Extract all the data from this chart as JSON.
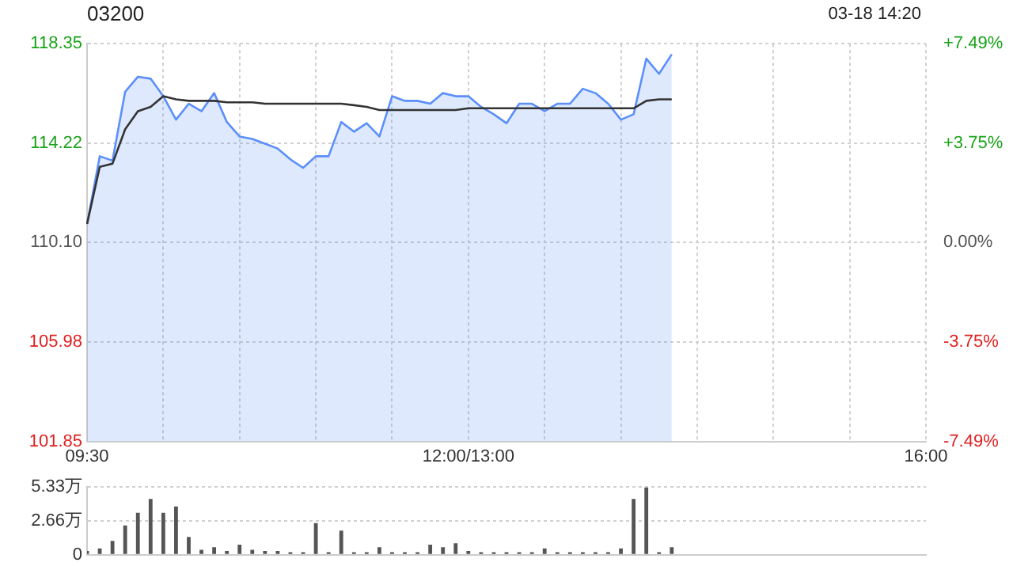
{
  "chart_data": [
    {
      "type": "line",
      "title": "03200",
      "annotations": [
        "03-18 14:20"
      ],
      "categories": [
        "09:30",
        null,
        null,
        null,
        null,
        null,
        null,
        null,
        null,
        null,
        null,
        null,
        null,
        null,
        null,
        null,
        null,
        null,
        null,
        null,
        null,
        null,
        null,
        null,
        null,
        null,
        null,
        null,
        null,
        null,
        "12:00/13:00",
        null,
        null,
        null,
        null,
        null,
        null,
        null,
        null,
        null,
        null,
        null,
        null,
        null,
        null,
        null,
        null,
        null,
        null,
        null,
        null,
        null,
        null,
        null,
        null,
        null,
        null,
        null,
        null,
        null,
        null,
        null,
        null,
        null,
        null,
        null,
        "16:00"
      ],
      "series": [
        {
          "type": "area",
          "color": "#5b8ff9",
          "values": [
            110.87,
            113.68,
            113.5,
            116.36,
            116.98,
            116.9,
            116.17,
            115.2,
            115.86,
            115.55,
            116.3,
            115.1,
            114.5,
            114.4,
            114.2,
            114.0,
            113.55,
            113.2,
            113.68,
            113.68,
            115.1,
            114.7,
            115.05,
            114.5,
            116.17,
            115.98,
            115.98,
            115.86,
            116.3,
            116.17,
            116.17,
            115.73,
            115.42,
            115.05,
            115.86,
            115.86,
            115.55,
            115.86,
            115.86,
            116.48,
            116.3,
            115.86,
            115.2,
            115.42,
            117.73,
            117.1,
            117.91,
            null,
            null,
            null,
            null,
            null,
            null,
            null,
            null,
            null,
            null,
            null,
            null,
            null,
            null,
            null,
            null,
            null,
            null,
            null,
            null
          ]
        },
        {
          "type": "line",
          "color": "#333333",
          "values": [
            110.87,
            113.24,
            113.37,
            114.8,
            115.55,
            115.73,
            116.17,
            116.04,
            115.98,
            115.98,
            115.98,
            115.92,
            115.92,
            115.92,
            115.86,
            115.86,
            115.86,
            115.86,
            115.86,
            115.86,
            115.86,
            115.8,
            115.73,
            115.6,
            115.6,
            115.6,
            115.6,
            115.6,
            115.6,
            115.6,
            115.67,
            115.67,
            115.67,
            115.67,
            115.67,
            115.67,
            115.67,
            115.67,
            115.67,
            115.67,
            115.67,
            115.67,
            115.67,
            115.67,
            115.98,
            116.04,
            116.04,
            null,
            null,
            null,
            null,
            null,
            null,
            null,
            null,
            null,
            null,
            null,
            null,
            null,
            null,
            null,
            null,
            null,
            null,
            null,
            null
          ]
        }
      ],
      "ylim": [
        101.85,
        118.35
      ],
      "yticks": [
        {
          "value": 101.85,
          "label": "101.85"
        },
        {
          "value": 105.98,
          "label": "105.98"
        },
        {
          "value": 110.1,
          "label": "110.10"
        },
        {
          "value": 114.22,
          "label": "114.22"
        },
        {
          "value": 118.35,
          "label": "118.35"
        }
      ],
      "y2lim": [
        -7.49,
        7.49
      ],
      "y2ticks": [
        {
          "value": -7.49,
          "label": "-7.49%"
        },
        {
          "value": -3.75,
          "label": "-3.75%"
        },
        {
          "value": 0,
          "label": "0.00%"
        },
        {
          "value": 3.75,
          "label": "+3.75%"
        },
        {
          "value": 7.49,
          "label": "+7.49%"
        }
      ],
      "grid": true,
      "marker": "none"
    },
    {
      "type": "bar",
      "color": "#555555",
      "tick_labels": "y",
      "categories": [
        null,
        null,
        null,
        null,
        null,
        null,
        null,
        null,
        null,
        null,
        null,
        null,
        null,
        null,
        null,
        null,
        null,
        null,
        null,
        null,
        null,
        null,
        null,
        null,
        null,
        null,
        null,
        null,
        null,
        null,
        null,
        null,
        null,
        null,
        null,
        null,
        null,
        null,
        null,
        null,
        null,
        null,
        null,
        null,
        null,
        null,
        null,
        null,
        null,
        null,
        null,
        null,
        null,
        null,
        null,
        null,
        null,
        null,
        null,
        null,
        null,
        null,
        null,
        null,
        null,
        null,
        null
      ],
      "values": [
        0.3,
        0.5,
        1.1,
        2.3,
        3.3,
        4.4,
        3.3,
        3.8,
        1.4,
        0.4,
        0.6,
        0.3,
        0.8,
        0.4,
        0.3,
        0.3,
        0.2,
        0.2,
        2.5,
        0.2,
        1.9,
        0.2,
        0.2,
        0.6,
        0.2,
        0.2,
        0.2,
        0.8,
        0.6,
        0.9,
        0.3,
        0.2,
        0.2,
        0.2,
        0.2,
        0.2,
        0.5,
        0.2,
        0.2,
        0.2,
        0.2,
        0.2,
        0.5,
        4.4,
        5.3,
        0.2,
        0.6,
        null,
        null,
        null,
        null,
        null,
        null,
        null,
        null,
        null,
        null,
        null,
        null,
        null,
        null,
        null,
        null,
        null,
        null,
        null,
        null
      ],
      "ylim": [
        0,
        5.33
      ],
      "yticks": [
        {
          "value": 0,
          "label": "0"
        },
        {
          "value": 2.66,
          "label": "2.66万"
        },
        {
          "value": 5.33,
          "label": "5.33万"
        }
      ],
      "grid": "y"
    }
  ]
}
